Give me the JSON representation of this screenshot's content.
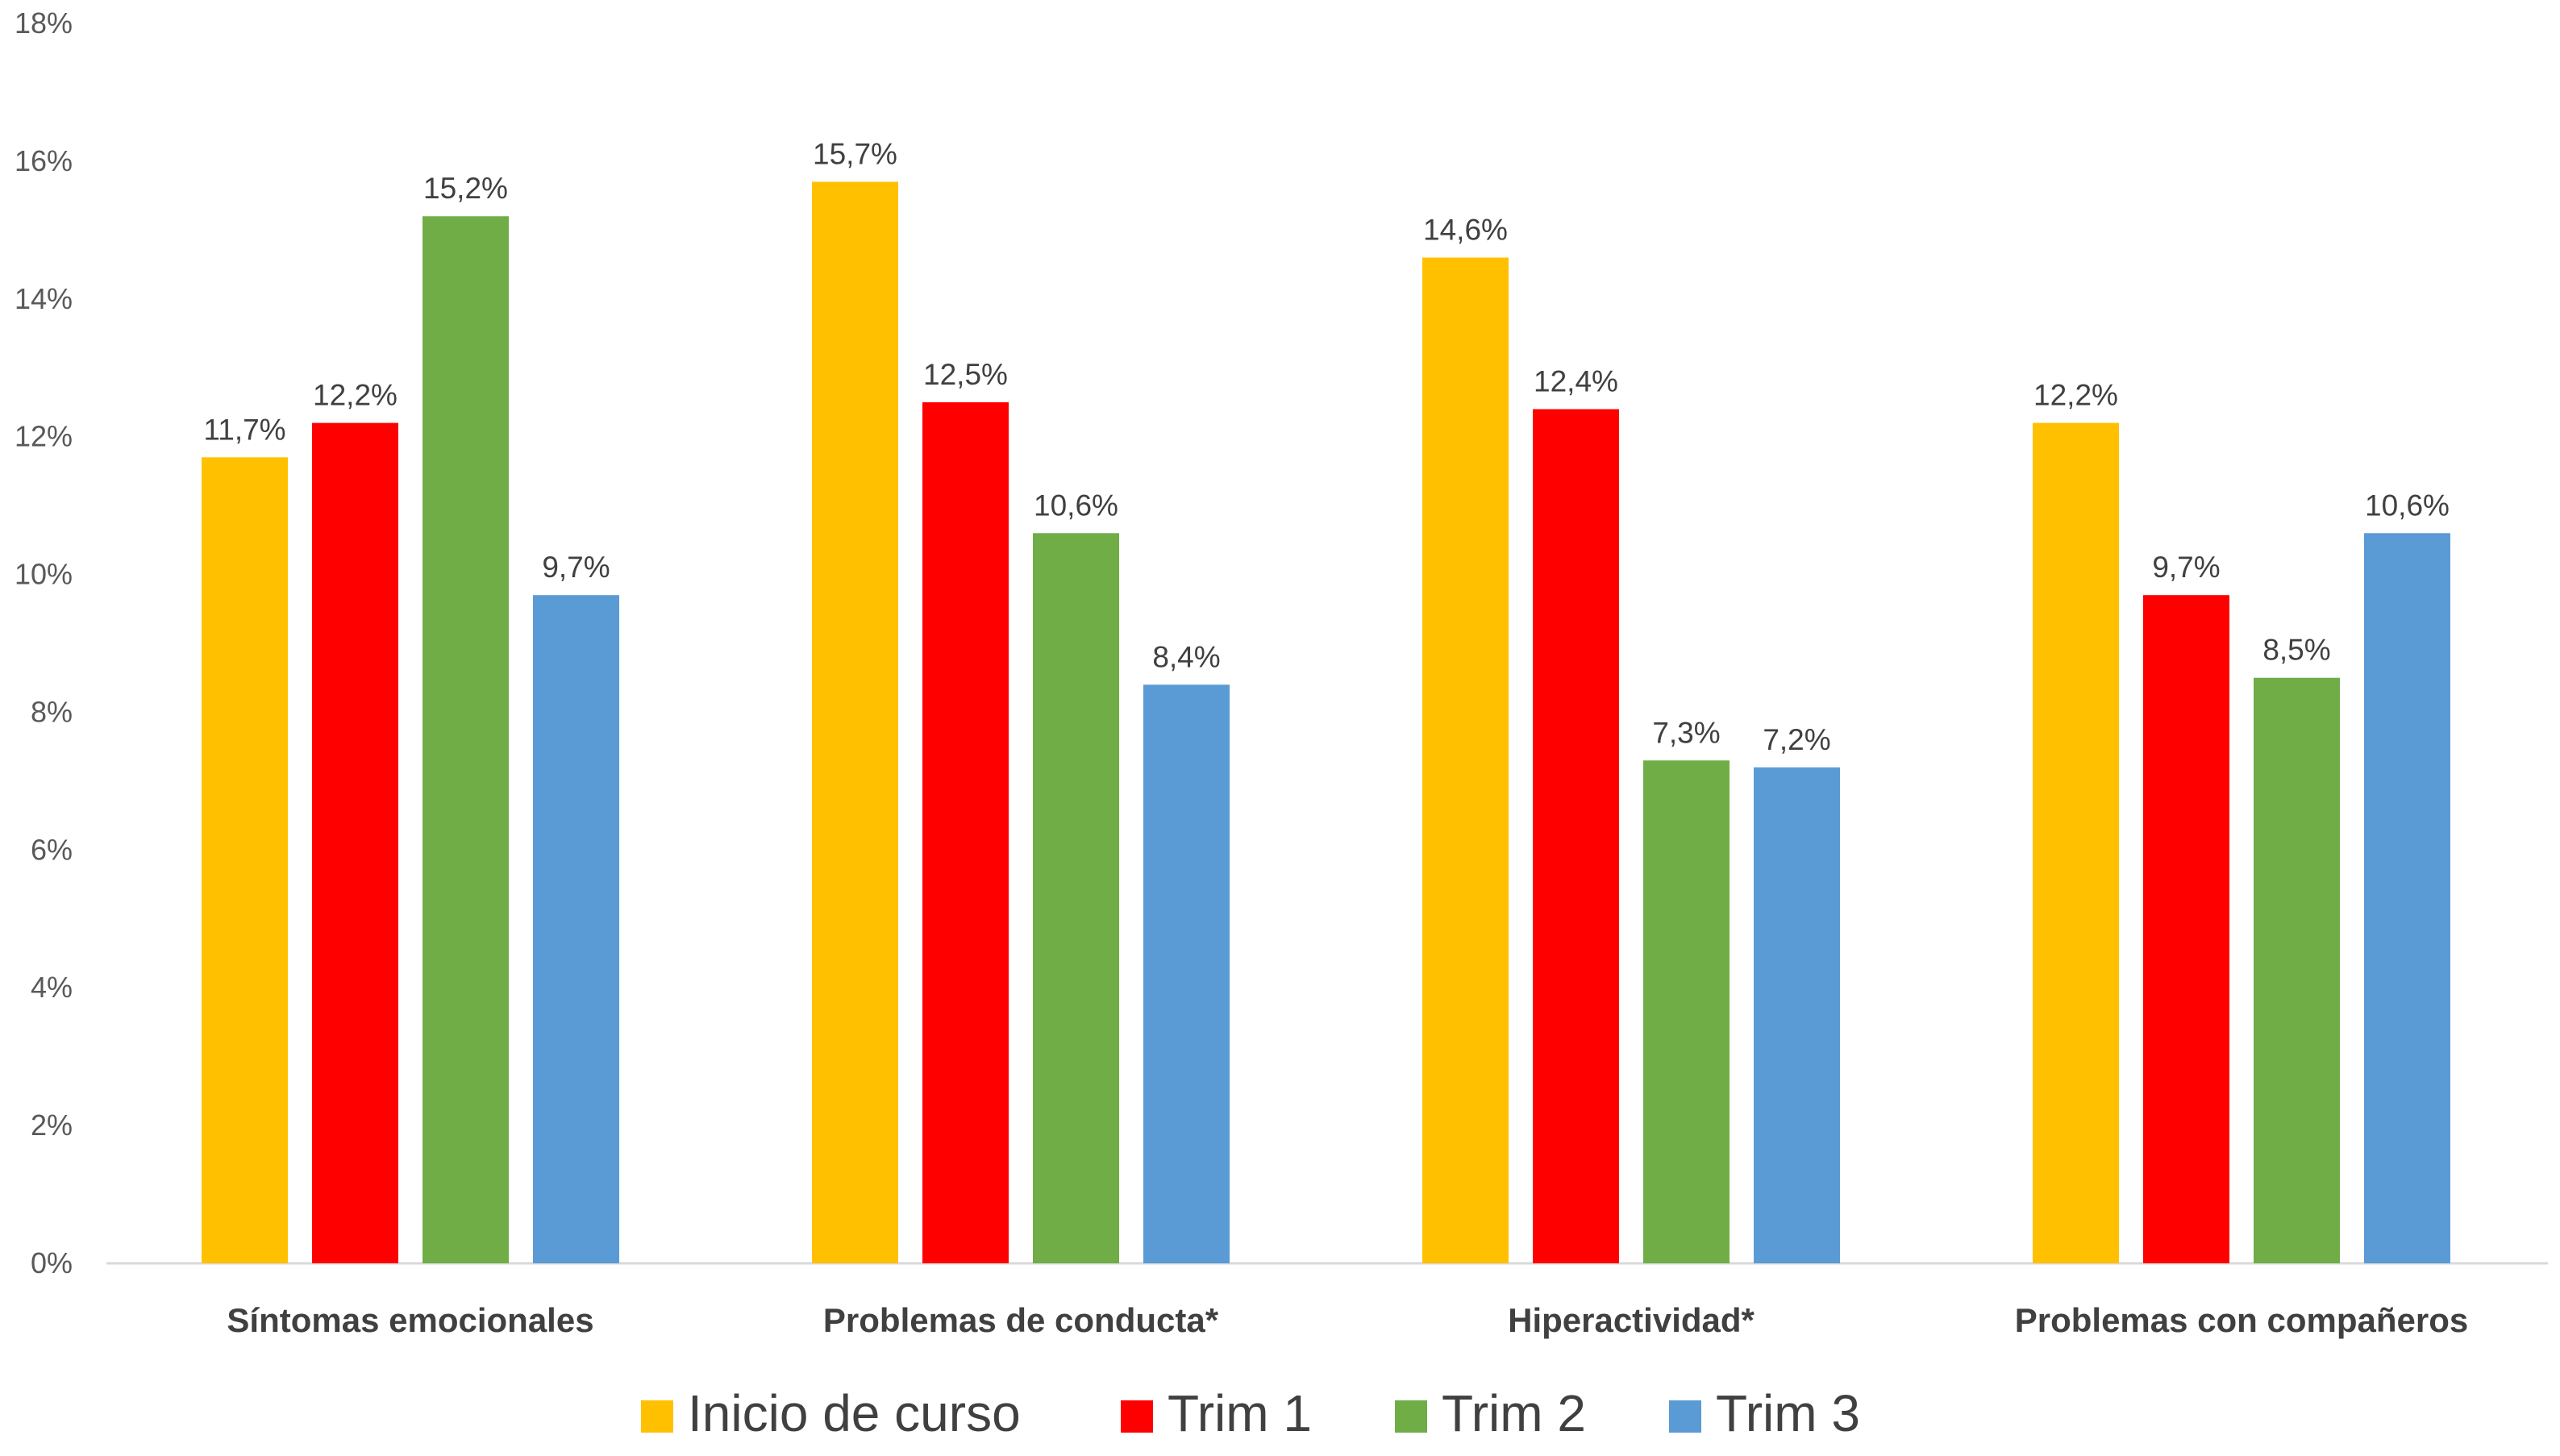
{
  "chart_data": {
    "type": "bar",
    "categories": [
      "Síntomas emocionales",
      "Problemas de conducta*",
      "Hiperactividad*",
      "Problemas con compañeros"
    ],
    "series": [
      {
        "name": "Inicio de curso",
        "color": "#FFC000",
        "values": [
          11.7,
          15.7,
          14.6,
          12.2
        ],
        "labels": [
          "11,7%",
          "15,7%",
          "14,6%",
          "12,2%"
        ]
      },
      {
        "name": "Trim 1",
        "color": "#FF0000",
        "values": [
          12.2,
          12.5,
          12.4,
          9.7
        ],
        "labels": [
          "12,2%",
          "12,5%",
          "12,4%",
          "9,7%"
        ]
      },
      {
        "name": "Trim 2",
        "color": "#70AD47",
        "values": [
          15.2,
          10.6,
          7.3,
          8.5
        ],
        "labels": [
          "15,2%",
          "10,6%",
          "7,3%",
          "8,5%"
        ]
      },
      {
        "name": "Trim 3",
        "color": "#5B9BD5",
        "values": [
          9.7,
          8.4,
          7.2,
          10.6
        ],
        "labels": [
          "9,7%",
          "8,4%",
          "7,2%",
          "10,6%"
        ]
      }
    ],
    "yticks": [
      "0%",
      "2%",
      "4%",
      "6%",
      "8%",
      "10%",
      "12%",
      "14%",
      "16%",
      "18%"
    ],
    "ylim": [
      0,
      18
    ],
    "grid": false,
    "legend_position": "bottom"
  }
}
